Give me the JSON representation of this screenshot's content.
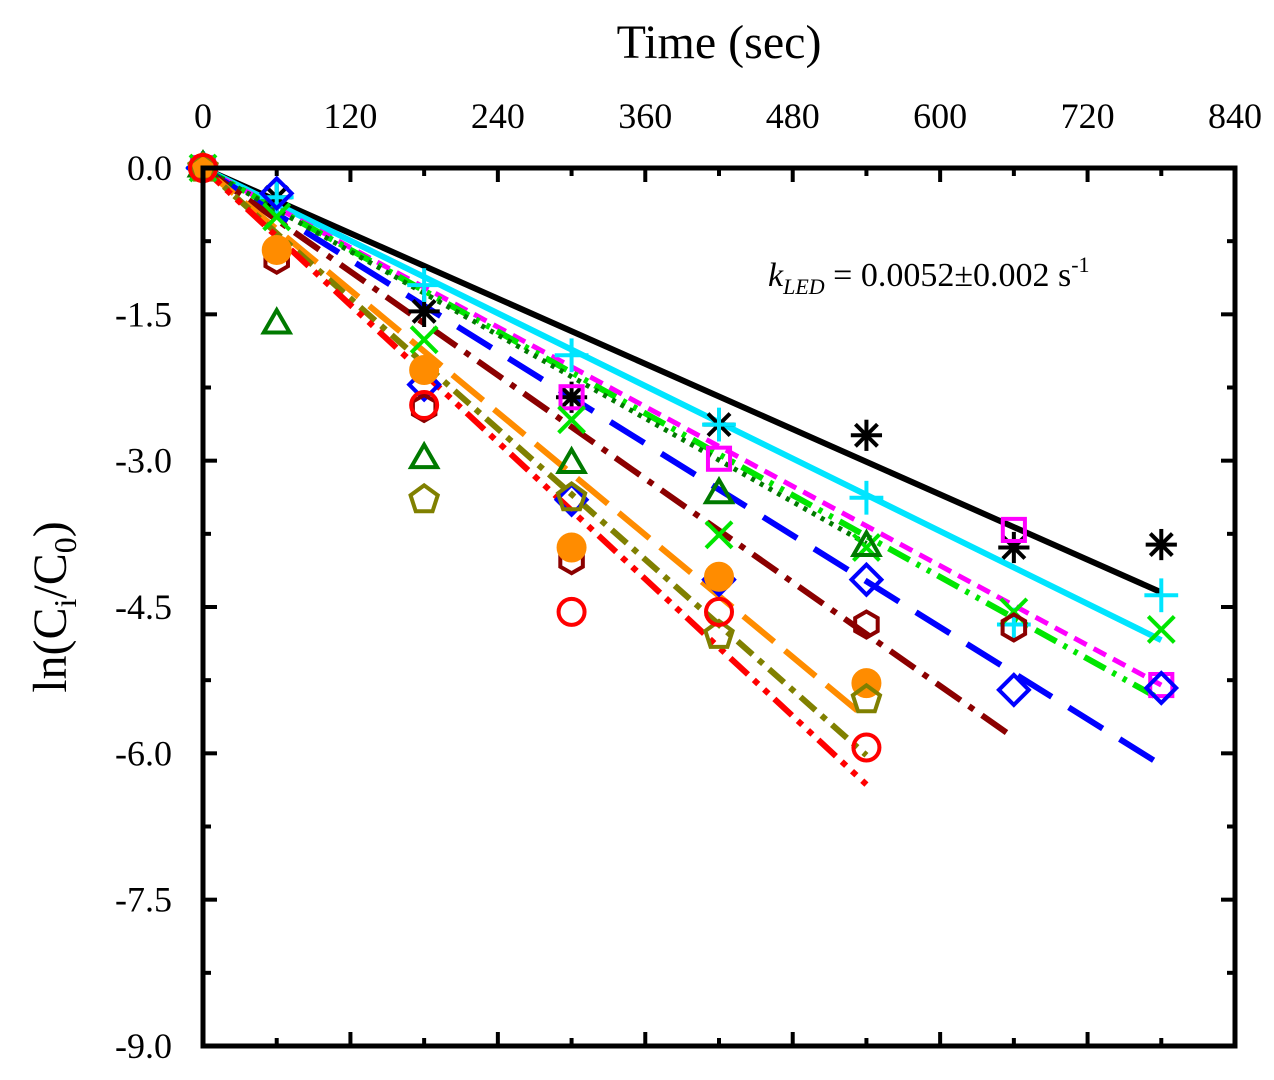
{
  "chart_data": {
    "type": "scatter",
    "xlabel": "Time (sec)",
    "ylabel": {
      "a": "ln(C",
      "b": "i",
      "c": "/C",
      "d": "0",
      "e": ")"
    },
    "annotation": {
      "symbol": "k",
      "subscript": "LED",
      "text": " = 0.0052±0.002 s",
      "superscript": "-1"
    },
    "xlim": [
      0,
      840
    ],
    "xticks": [
      0,
      120,
      240,
      360,
      480,
      600,
      720,
      840
    ],
    "xminorticks": [
      60,
      180,
      300,
      420,
      540,
      660,
      780
    ],
    "ylim": [
      -9,
      0
    ],
    "yticks": [
      {
        "value": 0,
        "label": "0.0"
      },
      -1.5,
      {
        "value": -3,
        "label": "-3.0"
      },
      -4.5,
      {
        "value": -6,
        "label": "-6.0"
      },
      -7.5,
      {
        "value": -9,
        "label": "-9.0"
      }
    ],
    "yminorticks": [
      -0.75,
      -2.25,
      -3.75,
      -5.25,
      -6.75,
      -8.25
    ],
    "series": [
      {
        "marker": "asterisk",
        "color": "#000000",
        "dash": "none",
        "width": 6,
        "x": [
          0,
          60,
          180,
          300,
          420,
          540,
          660,
          780
        ],
        "values": [
          0,
          -0.3,
          -1.47,
          -2.35,
          -2.63,
          -2.74,
          -3.89,
          -3.86
        ],
        "fit": {
          "x": [
            0,
            780
          ],
          "y": [
            0,
            -4.35
          ]
        }
      },
      {
        "marker": "plus",
        "color": "#00e5ff",
        "dash": "none",
        "width": 6,
        "x": [
          0,
          60,
          180,
          300,
          420,
          540,
          660,
          780
        ],
        "values": [
          0,
          -0.3,
          -1.2,
          -1.92,
          -2.63,
          -3.38,
          -4.68,
          -4.38
        ],
        "fit": {
          "x": [
            0,
            780
          ],
          "y": [
            0,
            -4.84
          ]
        }
      },
      {
        "marker": "square",
        "color": "#ff00ff",
        "dash": "14 8",
        "width": 5,
        "x": [
          0,
          300,
          420,
          660,
          780
        ],
        "values": [
          0,
          -2.35,
          -2.98,
          -3.71,
          -5.3
        ],
        "fit": {
          "x": [
            0,
            780
          ],
          "y": [
            0,
            -5.3
          ]
        }
      },
      {
        "marker": "cross",
        "color": "#00e600",
        "dash": "24 8 4 8 4 8",
        "width": 6,
        "x": [
          0,
          60,
          180,
          300,
          420,
          540,
          660,
          780
        ],
        "values": [
          0,
          -0.5,
          -1.76,
          -2.58,
          -3.76,
          -3.89,
          -4.55,
          -4.73
        ],
        "fit": {
          "x": [
            0,
            780
          ],
          "y": [
            0,
            -5.45
          ]
        }
      },
      {
        "marker": "diamond",
        "color": "#0000ff",
        "dash": "40 20",
        "width": 6,
        "x": [
          0,
          60,
          180,
          300,
          420,
          540,
          660,
          780
        ],
        "values": [
          0,
          -0.26,
          -2.22,
          -3.4,
          -4.22,
          -4.22,
          -5.35,
          -5.33
        ],
        "fit": {
          "x": [
            0,
            780
          ],
          "y": [
            0,
            -6.12
          ]
        }
      },
      {
        "marker": "triangle",
        "color": "#007a00",
        "dash": "4 6",
        "width": 5,
        "x": [
          0,
          60,
          180,
          300,
          420,
          540
        ],
        "values": [
          0,
          -1.61,
          -2.99,
          -3.04,
          -3.35,
          -3.89
        ],
        "fit": {
          "x": [
            0,
            540
          ],
          "y": [
            0,
            -3.85
          ]
        }
      },
      {
        "marker": "hexagon",
        "color": "#8b0000",
        "dash": "30 10 6 10",
        "width": 6,
        "x": [
          0,
          60,
          180,
          300,
          540,
          660
        ],
        "values": [
          0,
          -0.94,
          -2.46,
          -4.02,
          -4.68,
          -4.71
        ],
        "fit": {
          "x": [
            0,
            660
          ],
          "y": [
            0,
            -5.84
          ]
        }
      },
      {
        "marker": "circle-filled",
        "color": "#ff8c00",
        "dash": "40 14",
        "width": 6,
        "x": [
          0,
          60,
          180,
          300,
          420,
          540
        ],
        "values": [
          0,
          -0.84,
          -2.07,
          -3.89,
          -4.19,
          -5.28
        ],
        "fit": {
          "x": [
            0,
            540
          ],
          "y": [
            0,
            -5.64
          ]
        }
      },
      {
        "marker": "pentagon",
        "color": "#808000",
        "dash": "20 8 6 8",
        "width": 6,
        "x": [
          0,
          180,
          300,
          420,
          540
        ],
        "values": [
          0,
          -3.4,
          -3.38,
          -4.79,
          -5.45
        ],
        "fit": {
          "x": [
            0,
            540
          ],
          "y": [
            0,
            -6.02
          ]
        }
      },
      {
        "marker": "circle",
        "color": "#ff0000",
        "dash": "24 8 6 8 6 8",
        "width": 6,
        "x": [
          0,
          180,
          300,
          420,
          540
        ],
        "values": [
          0,
          -2.43,
          -4.55,
          -4.55,
          -5.94
        ],
        "fit": {
          "x": [
            0,
            540
          ],
          "y": [
            0,
            -6.32
          ]
        }
      }
    ]
  }
}
